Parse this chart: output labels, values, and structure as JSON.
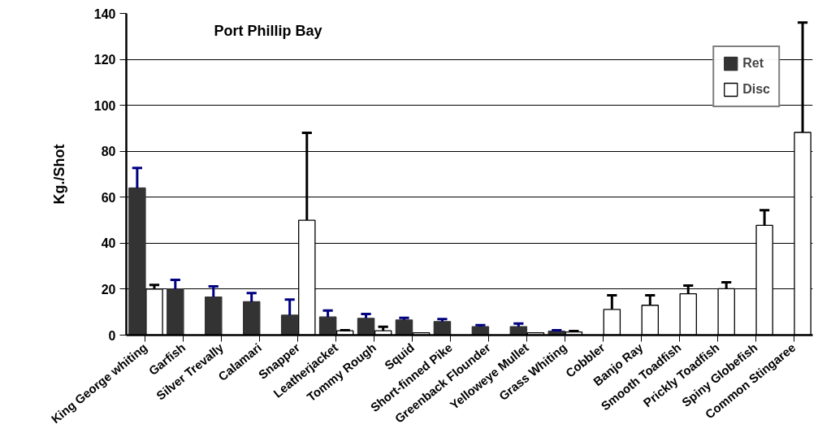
{
  "chart_data": {
    "type": "bar",
    "title": "Port Phillip Bay",
    "ylabel": "Kg./Shot",
    "categories": [
      "King George whiting",
      "Garfish",
      "Silver Trevally",
      "Calamari",
      "Snapper",
      "Leatherjacket",
      "Tommy Rough",
      "Squid",
      "Short-finned Pike",
      "Greenback Flounder",
      "Yelloweye Mullet",
      "Grass Whiting",
      "Cobbler",
      "Banjo Ray",
      "Smooth Toadfish",
      "Prickly Toadfish",
      "Spiny Globefish",
      "Common Stingaree"
    ],
    "series": [
      {
        "name": "Ret",
        "color": "#333333",
        "values": [
          64,
          20,
          16.6,
          14.5,
          8.7,
          7.9,
          7.3,
          6.6,
          5.9,
          3.7,
          3.7,
          1.7,
          0,
          0,
          0,
          0,
          0,
          0
        ],
        "errors": [
          [
            64,
            72.7
          ],
          [
            20,
            24
          ],
          [
            16.6,
            21.2
          ],
          [
            14.5,
            18.3
          ],
          [
            8.7,
            15.5
          ],
          [
            7.9,
            10.7
          ],
          [
            7.3,
            9.2
          ],
          [
            6.6,
            7.5
          ],
          [
            5.9,
            7
          ],
          [
            3.7,
            4.3
          ],
          [
            3.7,
            5
          ],
          [
            1.7,
            2.1
          ],
          null,
          null,
          null,
          null,
          null,
          null
        ]
      },
      {
        "name": "Disc",
        "color": "#ffffff",
        "values": [
          20,
          0,
          0,
          0,
          50,
          1.9,
          1.9,
          1,
          0,
          0,
          1,
          1.4,
          11.2,
          13,
          18,
          20.2,
          47.8,
          88.2
        ],
        "errors": [
          [
            20,
            21.8
          ],
          null,
          null,
          null,
          [
            50,
            88
          ],
          [
            1.9,
            2.1
          ],
          [
            1.9,
            3.6
          ],
          null,
          null,
          null,
          null,
          [
            1.4,
            1.8
          ],
          [
            11.2,
            17.3
          ],
          [
            13,
            17.3
          ],
          [
            18,
            21.6
          ],
          [
            20.2,
            23
          ],
          [
            47.8,
            54.4
          ],
          [
            88.2,
            136
          ]
        ]
      }
    ],
    "ylim": [
      0,
      140
    ],
    "yticks": [
      0,
      20,
      40,
      60,
      80,
      100,
      120,
      140
    ],
    "grid": "y",
    "legend": "top right"
  }
}
